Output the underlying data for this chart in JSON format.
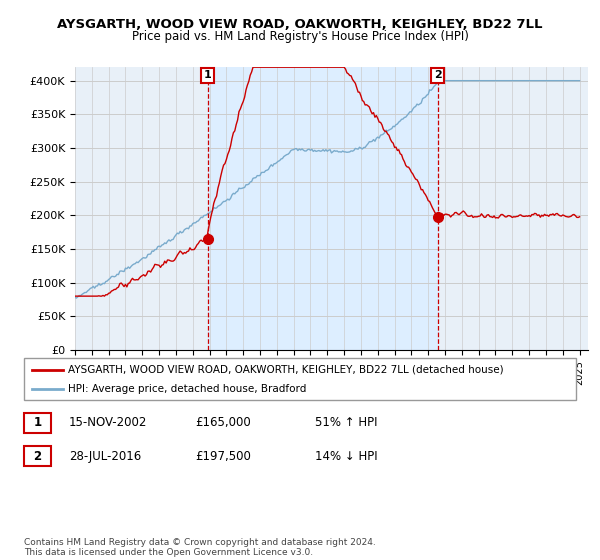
{
  "title": "AYSGARTH, WOOD VIEW ROAD, OAKWORTH, KEIGHLEY, BD22 7LL",
  "subtitle": "Price paid vs. HM Land Registry's House Price Index (HPI)",
  "ylim": [
    0,
    420000
  ],
  "yticks": [
    0,
    50000,
    100000,
    150000,
    200000,
    250000,
    300000,
    350000,
    400000
  ],
  "ytick_labels": [
    "£0",
    "£50K",
    "£100K",
    "£150K",
    "£200K",
    "£250K",
    "£300K",
    "£350K",
    "£400K"
  ],
  "sale1_year": 2002.88,
  "sale1_price": 165000,
  "sale2_year": 2016.56,
  "sale2_price": 197500,
  "legend_line1": "AYSGARTH, WOOD VIEW ROAD, OAKWORTH, KEIGHLEY, BD22 7LL (detached house)",
  "legend_line2": "HPI: Average price, detached house, Bradford",
  "table_row1": [
    "1",
    "15-NOV-2002",
    "£165,000",
    "51% ↑ HPI"
  ],
  "table_row2": [
    "2",
    "28-JUL-2016",
    "£197,500",
    "14% ↓ HPI"
  ],
  "footer": "Contains HM Land Registry data © Crown copyright and database right 2024.\nThis data is licensed under the Open Government Licence v3.0.",
  "house_color": "#cc0000",
  "hpi_color": "#7aabcc",
  "shade_color": "#ddeeff",
  "background_color": "#ffffff",
  "plot_bg_color": "#e8f0f8",
  "grid_color": "#cccccc"
}
